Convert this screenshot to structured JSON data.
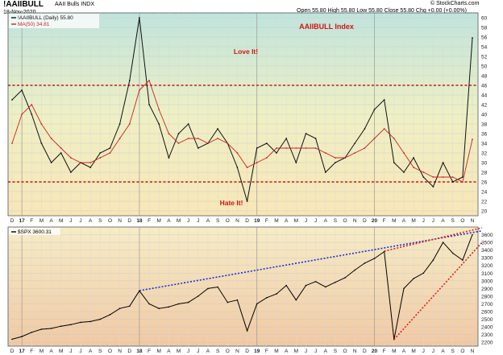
{
  "header": {
    "ticker": "!AAIIBULL",
    "ticker_desc": "AAII Bulls  INDX",
    "date": "18-Nov-2020",
    "quote": "Open 55.80   High 55.80   Low 55.80   Close 55.80   Chg +0.00 (+0.00%)",
    "copyright": "© StockCharts.com"
  },
  "chart_data": [
    {
      "type": "line",
      "title": "AAIIBULL Index",
      "legend": [
        "!AAIIBULL (Daily) 55.80",
        "MA(50) 34.81"
      ],
      "series_colors": [
        "#111111",
        "#cc2222"
      ],
      "annotations": [
        "Love It!",
        "Hate It!"
      ],
      "reference_lines": [
        46,
        26
      ],
      "ylim": [
        19,
        61
      ],
      "y_ticks": [
        20,
        22,
        24,
        26,
        28,
        30,
        32,
        34,
        36,
        38,
        40,
        42,
        44,
        46,
        48,
        50,
        52,
        54,
        56,
        58,
        60
      ],
      "x_tick_labels": [
        "D",
        "17",
        "F",
        "M",
        "A",
        "M",
        "J",
        "J",
        "A",
        "S",
        "O",
        "N",
        "D",
        "18",
        "F",
        "M",
        "A",
        "M",
        "J",
        "J",
        "A",
        "S",
        "O",
        "N",
        "D",
        "19",
        "F",
        "M",
        "A",
        "M",
        "J",
        "J",
        "A",
        "S",
        "O",
        "N",
        "D",
        "20",
        "F",
        "M",
        "A",
        "M",
        "J",
        "J",
        "A",
        "S",
        "O",
        "N"
      ],
      "series": [
        {
          "name": "!AAIIBULL (Daily)",
          "x": [
            "2016-12",
            "2017-01",
            "2017-02",
            "2017-03",
            "2017-04",
            "2017-05",
            "2017-06",
            "2017-07",
            "2017-08",
            "2017-09",
            "2017-10",
            "2017-11",
            "2017-12",
            "2018-01",
            "2018-02",
            "2018-03",
            "2018-04",
            "2018-05",
            "2018-06",
            "2018-07",
            "2018-08",
            "2018-09",
            "2018-10",
            "2018-11",
            "2018-12",
            "2019-01",
            "2019-02",
            "2019-03",
            "2019-04",
            "2019-05",
            "2019-06",
            "2019-07",
            "2019-08",
            "2019-09",
            "2019-10",
            "2019-11",
            "2019-12",
            "2020-01",
            "2020-02",
            "2020-03",
            "2020-04",
            "2020-05",
            "2020-06",
            "2020-07",
            "2020-08",
            "2020-09",
            "2020-10",
            "2020-11"
          ],
          "values": [
            43,
            45,
            40,
            34,
            30,
            32,
            28,
            30,
            29,
            32,
            33,
            38,
            47,
            60,
            42,
            38,
            31,
            36,
            38,
            33,
            34,
            37,
            34,
            29,
            22,
            33,
            34,
            32,
            35,
            30,
            36,
            35,
            28,
            30,
            31,
            34,
            37,
            41,
            43,
            30,
            28,
            31,
            27,
            25,
            30,
            26,
            27,
            55.8
          ]
        },
        {
          "name": "MA(50)",
          "x": [
            "2016-12",
            "2017-01",
            "2017-02",
            "2017-03",
            "2017-04",
            "2017-05",
            "2017-06",
            "2017-07",
            "2017-08",
            "2017-09",
            "2017-10",
            "2017-11",
            "2017-12",
            "2018-01",
            "2018-02",
            "2018-03",
            "2018-04",
            "2018-05",
            "2018-06",
            "2018-07",
            "2018-08",
            "2018-09",
            "2018-10",
            "2018-11",
            "2018-12",
            "2019-01",
            "2019-02",
            "2019-03",
            "2019-04",
            "2019-05",
            "2019-06",
            "2019-07",
            "2019-08",
            "2019-09",
            "2019-10",
            "2019-11",
            "2019-12",
            "2020-01",
            "2020-02",
            "2020-03",
            "2020-04",
            "2020-05",
            "2020-06",
            "2020-07",
            "2020-08",
            "2020-09",
            "2020-10",
            "2020-11"
          ],
          "values": [
            34,
            40,
            42,
            38,
            35,
            33,
            31,
            30,
            30,
            31,
            32,
            35,
            38,
            45,
            47,
            41,
            36,
            34,
            35,
            35,
            34,
            35,
            34,
            32,
            29,
            30,
            31,
            33,
            33,
            33,
            33,
            33,
            32,
            31,
            31,
            32,
            33,
            35,
            37,
            35,
            32,
            29,
            28,
            27,
            27,
            27,
            26,
            34.81
          ]
        }
      ]
    },
    {
      "type": "line",
      "legend": [
        "$SPX 3600.31"
      ],
      "series_colors": [
        "#000000"
      ],
      "ylim": [
        2150,
        3700
      ],
      "y_ticks": [
        2200,
        2300,
        2400,
        2500,
        2600,
        2700,
        2800,
        2900,
        3000,
        3100,
        3200,
        3300,
        3400,
        3500,
        3600
      ],
      "x_tick_labels": [
        "D",
        "17",
        "F",
        "M",
        "A",
        "M",
        "J",
        "J",
        "A",
        "S",
        "O",
        "N",
        "D",
        "18",
        "F",
        "M",
        "A",
        "M",
        "J",
        "J",
        "A",
        "S",
        "O",
        "N",
        "D",
        "19",
        "F",
        "M",
        "A",
        "M",
        "J",
        "J",
        "A",
        "S",
        "O",
        "N",
        "D",
        "20",
        "F",
        "M",
        "A",
        "M",
        "J",
        "J",
        "A",
        "S",
        "O",
        "N"
      ],
      "trendlines": [
        {
          "color": "#1a2fd0",
          "from": [
            "2018-01",
            2872
          ],
          "to": [
            "2020-11",
            3650
          ]
        },
        {
          "color": "#e02020",
          "from": [
            "2020-02",
            3386
          ],
          "to": [
            "2020-11",
            3690
          ]
        },
        {
          "color": "#e02020",
          "from": [
            "2020-03",
            2237
          ],
          "to": [
            "2020-11",
            3500
          ]
        }
      ],
      "series": [
        {
          "name": "$SPX",
          "x": [
            "2016-12",
            "2017-01",
            "2017-02",
            "2017-03",
            "2017-04",
            "2017-05",
            "2017-06",
            "2017-07",
            "2017-08",
            "2017-09",
            "2017-10",
            "2017-11",
            "2017-12",
            "2018-01",
            "2018-02",
            "2018-03",
            "2018-04",
            "2018-05",
            "2018-06",
            "2018-07",
            "2018-08",
            "2018-09",
            "2018-10",
            "2018-11",
            "2018-12",
            "2019-01",
            "2019-02",
            "2019-03",
            "2019-04",
            "2019-05",
            "2019-06",
            "2019-07",
            "2019-08",
            "2019-09",
            "2019-10",
            "2019-11",
            "2019-12",
            "2020-01",
            "2020-02",
            "2020-03",
            "2020-04",
            "2020-05",
            "2020-06",
            "2020-07",
            "2020-08",
            "2020-09",
            "2020-10",
            "2020-11"
          ],
          "values": [
            2240,
            2275,
            2330,
            2370,
            2380,
            2410,
            2430,
            2460,
            2470,
            2500,
            2560,
            2640,
            2670,
            2870,
            2700,
            2640,
            2660,
            2700,
            2720,
            2800,
            2900,
            2920,
            2720,
            2750,
            2350,
            2700,
            2780,
            2830,
            2940,
            2750,
            2940,
            2990,
            2920,
            2980,
            3040,
            3140,
            3230,
            3290,
            3380,
            2237,
            2900,
            3030,
            3100,
            3270,
            3500,
            3360,
            3270,
            3600.31
          ]
        }
      ]
    }
  ]
}
